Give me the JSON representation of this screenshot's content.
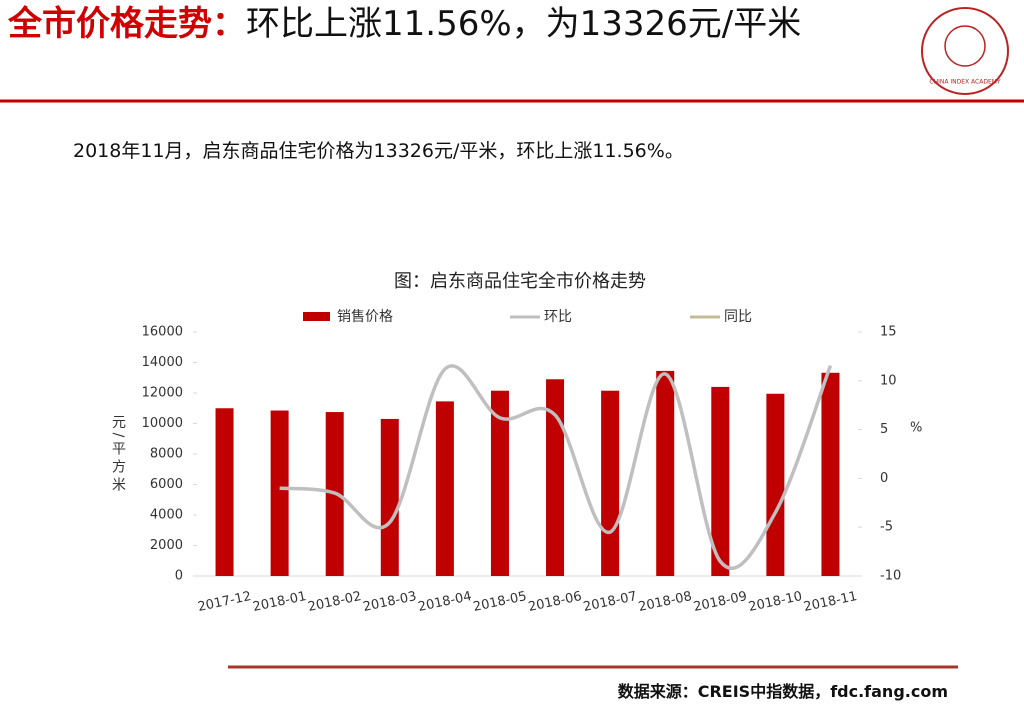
{
  "header": {
    "title_highlight": "全市价格走势：",
    "title_rest": "环比上涨11.56%，为13326元/平米",
    "logo_text": "CHINA INDEX ACADEMY"
  },
  "summary": "2018年11月，启东商品住宅价格为13326元/平米，环比上涨11.56%。",
  "chart_data": {
    "type": "bar",
    "title": "图：启东商品住宅全市价格走势",
    "ylabel": "元/平方米",
    "y2label": "%",
    "categories": [
      "2017-12",
      "2018-01",
      "2018-02",
      "2018-03",
      "2018-04",
      "2018-05",
      "2018-06",
      "2018-07",
      "2018-08",
      "2018-09",
      "2018-10",
      "2018-11"
    ],
    "series": [
      {
        "name": "销售价格",
        "type": "bar",
        "color": "#c00000",
        "values": [
          11000,
          10850,
          10750,
          10300,
          11450,
          12150,
          12900,
          12150,
          13450,
          12400,
          11950,
          13326
        ]
      },
      {
        "name": "环比",
        "type": "line",
        "axis": "y2",
        "color": "#bfbfbf",
        "values": [
          null,
          -1.0,
          -1.5,
          -4.5,
          11.2,
          6.2,
          6.5,
          -5.5,
          10.7,
          -8.5,
          -3.5,
          11.56
        ]
      },
      {
        "name": "同比",
        "type": "line",
        "axis": "y2",
        "color": "#c4bc96",
        "values": [
          null,
          null,
          null,
          null,
          null,
          null,
          null,
          null,
          null,
          null,
          null,
          null
        ]
      }
    ],
    "ylim": [
      0,
      16000
    ],
    "yticks": [
      0,
      2000,
      4000,
      6000,
      8000,
      10000,
      12000,
      14000,
      16000
    ],
    "y2lim": [
      -10,
      15
    ],
    "y2ticks": [
      -10,
      -5,
      0,
      5,
      10,
      15
    ]
  },
  "source": "数据来源：CREIS中指数据，fdc.fang.com"
}
